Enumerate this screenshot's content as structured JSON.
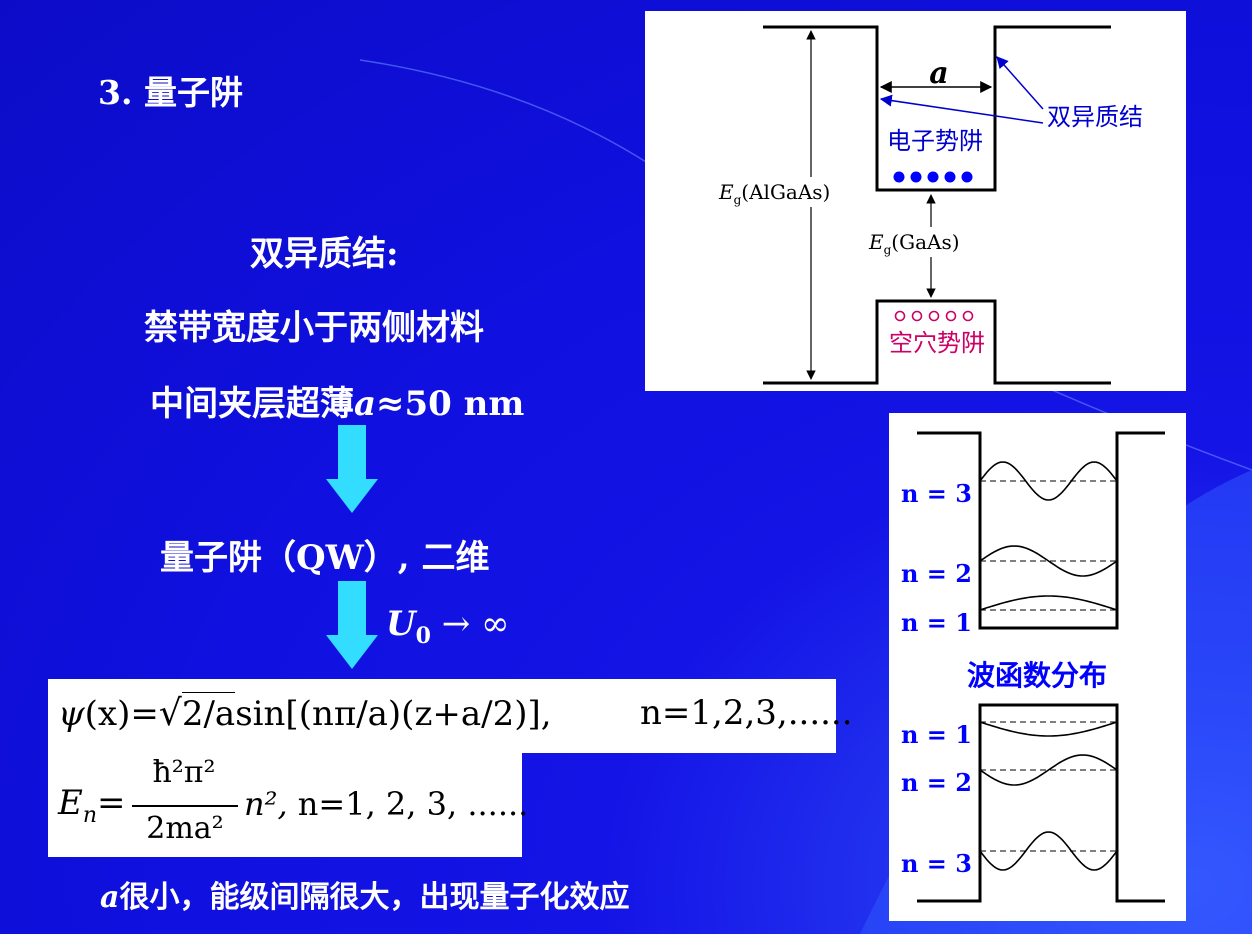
{
  "heading": "3. 量子阱",
  "main": {
    "line1": "双异质结:",
    "line2": "禁带宽度小于两侧材料",
    "line3_prefix": "中间夹层超薄",
    "line3_var": "a",
    "line3_suffix": "≈50 nm",
    "line4": "量子阱（QW）, 二维",
    "limit_var": "U",
    "limit_sub": "0",
    "limit_rest": " → ∞",
    "conclusion_var": "a",
    "conclusion_rest": "很小，能级间隔很大，出现量子化效应"
  },
  "formula1": {
    "psi": "ψ",
    "lhs_paren": "(x)",
    "eq": "=",
    "sqrt_content": "2/a",
    "sin": "sin[(nπ/a)(z+a/2)],",
    "n_range": "n=1,2,3,......"
  },
  "formula2": {
    "E": "E",
    "E_sub": "n",
    "eq": "=",
    "num": "ħ²π²",
    "den": "2ma²",
    "n2": "n²,",
    "n_range": "n=1, 2, 3, ......"
  },
  "band_diagram": {
    "width_label": "a",
    "heterojunction_label": "双异质结",
    "electron_well_label": "电子势阱",
    "hole_well_label": "空穴势阱",
    "eg_algaas_E": "E",
    "eg_algaas_sub": "g",
    "eg_algaas_mat": "(AlGaAs)",
    "eg_gaas_E": "E",
    "eg_gaas_sub": "g",
    "eg_gaas_mat": "(GaAs)",
    "electron_count": 5,
    "hole_count": 5,
    "colors": {
      "electron": "#0000ff",
      "hole": "#cc0066",
      "annotation": "#0000cc"
    }
  },
  "wavefunction_diagram": {
    "top_labels": [
      "n = 3",
      "n = 2",
      "n = 1"
    ],
    "caption": "波函数分布",
    "bottom_labels": [
      "n = 1",
      "n = 2",
      "n = 3"
    ],
    "label_color": "#0000ff"
  }
}
